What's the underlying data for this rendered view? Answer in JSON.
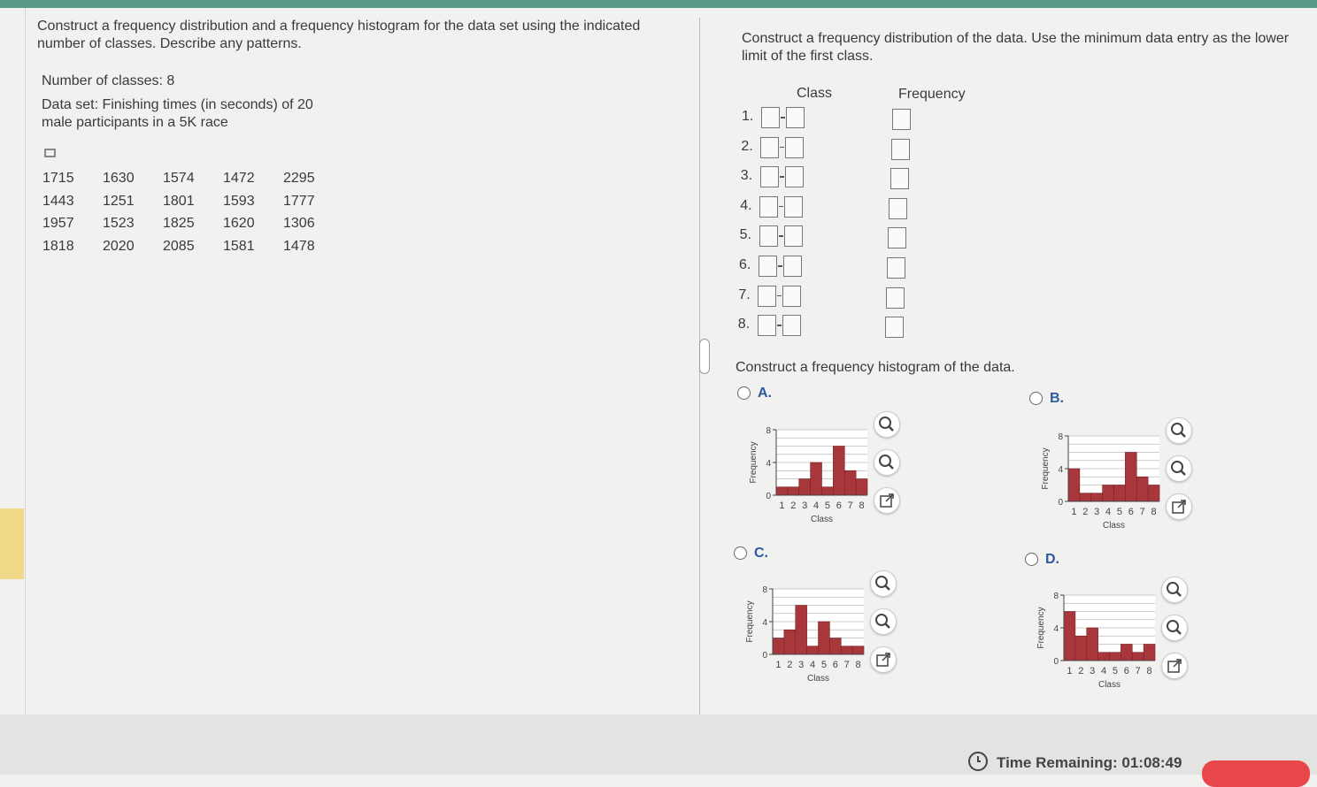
{
  "left": {
    "instructions": "Construct a frequency distribution and a frequency histogram for the data set using the indicated number of classes. Describe any patterns.",
    "num_classes": "Number of classes: 8",
    "data_set": "Data set: Finishing times (in seconds) of 20 male participants in a 5K race",
    "table": {
      "rows": [
        [
          1715,
          1630,
          1574,
          1472,
          2295
        ],
        [
          1443,
          1251,
          1801,
          1593,
          1777
        ],
        [
          1957,
          1523,
          1825,
          1620,
          1306
        ],
        [
          1818,
          2020,
          2085,
          1581,
          1478
        ]
      ]
    }
  },
  "right": {
    "instruction1": "Construct a frequency distribution of the data. Use the minimum data entry as the lower limit of the first class.",
    "class_header": "Class",
    "frequency_header": "Frequency",
    "row_numbers": [
      "1.",
      "2.",
      "3.",
      "4.",
      "5.",
      "6.",
      "7.",
      "8."
    ],
    "instruction2": "Construct a frequency histogram of the data.",
    "options": [
      {
        "label": "A.",
        "chart": {
          "type": "bar",
          "categories": [
            "1",
            "2",
            "3",
            "4",
            "5",
            "6",
            "7",
            "8"
          ],
          "values": [
            1,
            1,
            2,
            4,
            1,
            6,
            3,
            2
          ],
          "ylim": [
            0,
            8
          ],
          "yticks": [
            0,
            4,
            8
          ],
          "x_label": "Class",
          "y_label": "Frequency",
          "color": "#a8373c",
          "grid": true
        }
      },
      {
        "label": "B.",
        "chart": {
          "type": "bar",
          "categories": [
            "1",
            "2",
            "3",
            "4",
            "5",
            "6",
            "7",
            "8"
          ],
          "values": [
            4,
            1,
            1,
            2,
            2,
            6,
            3,
            2
          ],
          "ylim": [
            0,
            8
          ],
          "yticks": [
            0,
            4,
            8
          ],
          "x_label": "Class",
          "y_label": "Frequency",
          "color": "#a8373c",
          "grid": true
        }
      },
      {
        "label": "C.",
        "chart": {
          "type": "bar",
          "categories": [
            "1",
            "2",
            "3",
            "4",
            "5",
            "6",
            "7",
            "8"
          ],
          "values": [
            2,
            3,
            6,
            1,
            4,
            2,
            1,
            1
          ],
          "ylim": [
            0,
            8
          ],
          "yticks": [
            0,
            4,
            8
          ],
          "x_label": "Class",
          "y_label": "Frequency",
          "color": "#a8373c",
          "grid": true
        }
      },
      {
        "label": "D.",
        "chart": {
          "type": "bar",
          "categories": [
            "1",
            "2",
            "3",
            "4",
            "5",
            "6",
            "7",
            "8"
          ],
          "values": [
            6,
            3,
            4,
            1,
            1,
            2,
            1,
            2
          ],
          "ylim": [
            0,
            8
          ],
          "yticks": [
            0,
            4,
            8
          ],
          "x_label": "Class",
          "y_label": "Frequency",
          "color": "#a8373c",
          "grid": true
        }
      }
    ]
  },
  "footer": {
    "timer": "Time Remaining: 01:08:49"
  }
}
